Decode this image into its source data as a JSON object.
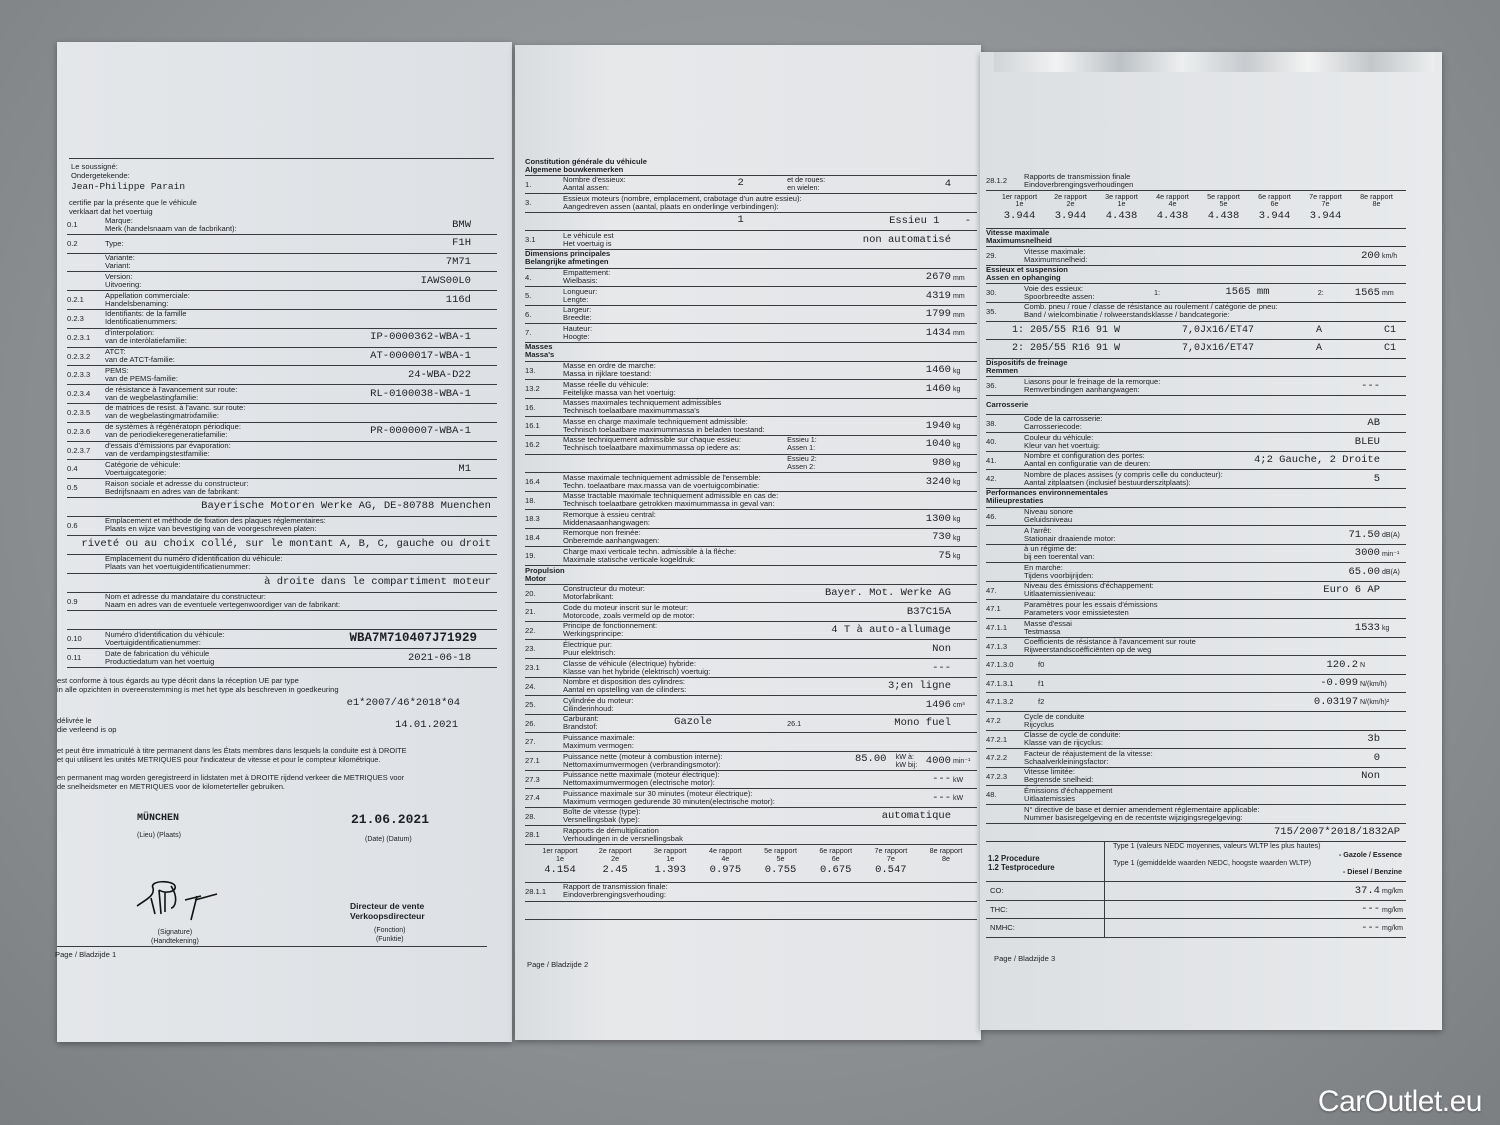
{
  "page1": {
    "intro": {
      "signatory_fr": "Le soussigné:",
      "signatory_nl": "Ondergetekende:",
      "name": "Jean-Philippe Parain",
      "certifies_fr": "certifie par la présente que le véhicule",
      "certifies_nl": "verklaart dat het voertuig"
    },
    "rows": [
      {
        "code": "0.1",
        "fr": "Marque:",
        "nl": "Merk (handelsnaam van de facbrikant):",
        "value": "BMW"
      },
      {
        "code": "0.2",
        "fr": "Type:",
        "value": "F1H",
        "kind": "single"
      },
      {
        "fr": "Variante:",
        "nl": "Variant:",
        "value": "7M71"
      },
      {
        "fr": "Version:",
        "nl": "Uitvoering:",
        "value": "IAWS00L0"
      },
      {
        "code": "0.2.1",
        "fr": "Appellation commerciale:",
        "nl": "Handelsbenaming:",
        "value": "116d"
      },
      {
        "code": "0.2.3",
        "fr": "Identifiants: de la famille",
        "nl": "Identificatienummers:"
      },
      {
        "code": "0.2.3.1",
        "fr": "d'interpolation:",
        "nl": "van de interòlatiefamilie:",
        "value": "IP-0000362-WBA-1"
      },
      {
        "code": "0.2.3.2",
        "fr": "ATCT:",
        "nl": "van de ATCT-familie:",
        "value": "AT-0000017-WBA-1"
      },
      {
        "code": "0.2.3.3",
        "fr": "PEMS:",
        "nl": "van de PEMS-familie:",
        "value": "24-WBA-D22"
      },
      {
        "code": "0.2.3.4",
        "fr": "de résistance à l'avancement sur route:",
        "nl": "van de wegbelastingfamilie:",
        "value": "RL-0100038-WBA-1"
      },
      {
        "code": "0.2.3.5",
        "fr": "de matrices de resist. à l'avanc. sur route:",
        "nl": "van de wegbelastingmatrixfamilie:"
      },
      {
        "code": "0.2.3.6",
        "fr": "de systèmes à régénératopn périodique:",
        "nl": "van de periodiekeregeneratiefamilie:",
        "value": "PR-0000007-WBA-1"
      },
      {
        "code": "0.2.3.7",
        "fr": "d'essais d'émissions par évaporation:",
        "nl": "van de verdampingstestfamilie:"
      },
      {
        "code": "0.4",
        "fr": "Catégorie de véhicule:",
        "nl": "Voertuigcategorie:",
        "value": "M1"
      },
      {
        "code": "0.5",
        "fr": "Raison sociale et adresse du constructeur:",
        "nl": "Bedrijfsnaam en adres van de fabrikant:"
      },
      {
        "kind": "vline",
        "value": "Bayerische Motoren Werke AG, DE-80788 Muenchen"
      },
      {
        "code": "0.6",
        "fr": "Emplacement et méthode de fixation des plaques réglementaires:",
        "nl": "Plaats en wijze van bevestiging van de voorgeschreven platen:"
      },
      {
        "kind": "vline",
        "value": "riveté ou au choix collé, sur le montant A, B, C, gauche ou droit"
      },
      {
        "fr": "Emplacement du numéro d'identification du véhicule:",
        "nl": "Plaats van het voertuigidentificatienummer:"
      },
      {
        "kind": "vline",
        "value": "à droite dans le compartiment moteur"
      },
      {
        "code": "0.9",
        "fr": "Nom et adresse du mandataire du constructeur:",
        "nl": "Naam en adres van de eventuele vertegenwoordiger van de fabrikant:"
      },
      {
        "kind": "vline"
      },
      {
        "code": "0.10",
        "fr": "Numéro d'identification du véhicule:",
        "nl": "Voertuigidentificatienummer:",
        "value": "WBA7M710407J71929",
        "kind": "vin"
      },
      {
        "code": "0.11",
        "fr": "Date de fabrication du véhicule",
        "nl": "Productiedatum van het voertuig",
        "value": "2021-06-18"
      }
    ],
    "conformity_fr": "est conforme à tous égards au type décrit dans la réception UE par type",
    "conformity_nl": "in alle opzichten in overeenstemming is met het type als beschreven in goedkeuring",
    "approval_number": "e1*2007/46*2018*04",
    "issued_fr": "délivrée le",
    "issued_nl": "die verleend is op",
    "issued_date": "14.01.2021",
    "registration_fr": "et peut être immatriculé à titre permanent dans les États membres dans lesquels la conduite est à DROITE\net qui utilisent les unités METRIQUES pour l'indicateur de vitesse et  pour le compteur kilométrique.",
    "registration_nl": "en permanent mag worden geregistreerd in lidstaten met à DROITE rijdend verkeer die METRIQUES voor\nde snelheidsmeter en METRIQUES voor de kilometerteller gebruiken.",
    "place": "MÜNCHEN",
    "place_label": "(Lieu) (Plaats)",
    "date": "21.06.2021",
    "date_label": "(Date) (Datum)",
    "signature_label": "(Signature)\n(Handtekening)",
    "function": "Directeur de vente\nVerkoopsdirecteur",
    "function_label": "(Fonction)\n(Funktie)",
    "footer": "Page / Bladzijde 1"
  },
  "page2": {
    "rows": [
      {
        "kind": "section",
        "fr": "Constitution générale du véhicule",
        "nl": "Algemene bouwkenmerken"
      },
      {
        "code": "1.",
        "fr": "Nombre d'essieux:",
        "nl": "Aantal assen:",
        "midval": "2",
        "mid": "et de roues:\nen wielen:",
        "value": "4"
      },
      {
        "code": "3.",
        "fr": "Essieux moteurs (nombre, emplacement, crabotage d'un autre essieu):",
        "nl": "Aangedreven assen (aantal, plaats en onderlinge verbindingen):"
      },
      {
        "kind": "vline",
        "midval": "1",
        "value": "Essieu 1    -"
      },
      {
        "code": "3.1",
        "fr": "Le véhicule est",
        "nl": "Het voertuig is",
        "value": "non automatisé"
      },
      {
        "kind": "section",
        "fr": "Dimensions principales",
        "nl": "Belangrijke afmetingen"
      },
      {
        "code": "4.",
        "fr": "Empattement:",
        "nl": "Wielbasis:",
        "value": "2670",
        "unit": "mm"
      },
      {
        "code": "5.",
        "fr": "Longueur:",
        "nl": "Lengte:",
        "value": "4319",
        "unit": "mm"
      },
      {
        "code": "6.",
        "fr": "Largeur:",
        "nl": "Breedte:",
        "value": "1799",
        "unit": "mm"
      },
      {
        "code": "7.",
        "fr": "Hauteur:",
        "nl": "Hoogte:",
        "value": "1434",
        "unit": "mm"
      },
      {
        "kind": "section",
        "fr": "Masses",
        "nl": "Massa's"
      },
      {
        "code": "13.",
        "fr": "Masse en ordre de marche:",
        "nl": "Massa in rijklare toestand:",
        "value": "1460",
        "unit": "kg"
      },
      {
        "code": "13.2",
        "fr": "Masse réelle du véhicule:",
        "nl": "Feitelijke massa van het voertuig:",
        "value": "1460",
        "unit": "kg"
      },
      {
        "code": "16.",
        "fr": "Masses maximales techniquement admissibles",
        "nl": "Technisch toelaatbare maximummassa's"
      },
      {
        "code": "16.1",
        "fr": "Masse en charge maximale techniquement admissible:",
        "nl": "Technisch toelaatbare maximummassa in beladen toestand:",
        "value": "1940",
        "unit": "kg"
      },
      {
        "code": "16.2",
        "fr": "Masse techniquement admissible sur chaque essieu:",
        "nl": "Technisch toelaatbare maximummassa op iedere as:",
        "mid": "Essieu 1:\nAssen 1:",
        "value": "1040",
        "unit": "kg"
      },
      {
        "mid": "Essieu 2:\nAssen 2:",
        "value": "980",
        "unit": "kg"
      },
      {
        "code": "16.4",
        "fr": "Masse maximale techniquement admissible de l'ensemble:",
        "nl": "Techn. toelaatbare max.massa van de voertuigcombinatie:",
        "value": "3240",
        "unit": "kg"
      },
      {
        "code": "18.",
        "fr": "Masse tractable maximale techniquement admissible en cas de:",
        "nl": "Technisch toelaatbare getrokken maximummassa in geval van:"
      },
      {
        "code": "18.3",
        "fr": "Remorque à essieu central:",
        "nl": "Middenasaanhangwagen:",
        "value": "1300",
        "unit": "kg"
      },
      {
        "code": "18.4",
        "fr": "Remorque non freinée:",
        "nl": "Onberemde aanhangwagen:",
        "value": "730",
        "unit": "kg"
      },
      {
        "code": "19.",
        "fr": "Charge maxi verticale techn. admissible à la flèche:",
        "nl": "Maximale statische verticale kogeldruk:",
        "value": "75",
        "unit": "kg"
      },
      {
        "kind": "section",
        "fr": "Propulsion",
        "nl": "Motor"
      },
      {
        "code": "20.",
        "fr": "Constructeur du moteur:",
        "nl": "Motorfabrikant:",
        "value": "Bayer. Mot. Werke AG"
      },
      {
        "code": "21.",
        "fr": "Code du moteur inscrit sur le moteur:",
        "nl": "Motorcode, zoals vermeld op de motor:",
        "value": "B37C15A"
      },
      {
        "code": "22.",
        "fr": "Principe de fonctionnement:",
        "nl": "Werkingsprincipe:",
        "value": "4 T à auto-allumage"
      },
      {
        "code": "23.",
        "fr": "Électrique pur:",
        "nl": "Puur elektrisch:",
        "value": "Non"
      },
      {
        "code": "23.1",
        "fr": "Classe de véhicule (électrique) hybride:",
        "nl": "Klasse van het hybride (elektrisch) voertuig:",
        "value": "---"
      },
      {
        "code": "24.",
        "fr": "Nombre et disposition des cylindres:",
        "nl": "Aantal en opstelling van de cilinders:",
        "value": "3;en ligne"
      },
      {
        "code": "25.",
        "fr": "Cylindrée du moteur:",
        "nl": "Cilinderinhoud:",
        "value": "1496",
        "unit": "cm³"
      },
      {
        "code": "26.",
        "fr": "Carburant:",
        "nl": "Brandstof:",
        "midval": "Gazole",
        "mid": "26.1",
        "value": "Mono fuel",
        "kind": "fuel"
      },
      {
        "code": "27.",
        "fr": "Puissance maximale:",
        "nl": "Maximum vermogen:"
      },
      {
        "code": "27.1",
        "fr": "Puissance nette (moteur à combustion interne):",
        "nl": "Nettomaximumvermogen (verbrandingsmotor):",
        "midval": "85.00",
        "mid": "kW à:\nkW bij:",
        "value": "4000",
        "unit": "min⁻¹",
        "kind": "power"
      },
      {
        "code": "27.3",
        "fr": "Puissance nette maximale (moteur électrique):",
        "nl": "Nettomaximumvermogen (electrische motor):",
        "value": "---",
        "unit": "kW"
      },
      {
        "code": "27.4",
        "fr": "Puissance maximale sur 30 minutes (moteur électrique):",
        "nl": "Maximum vermogen gedurende 30 minuten(electrische motor):",
        "value": "---",
        "unit": "kW"
      },
      {
        "code": "28.",
        "fr": "Boîte de vitesse (type):",
        "nl": "Versnellingsbak (type):",
        "value": "automatique"
      },
      {
        "code": "28.1",
        "fr": "Rapports de démultiplication",
        "nl": "Verhoudingen in de versnellingsbak"
      },
      {
        "kind": "gears",
        "labels": [
          "1er rapport\n1e",
          "2e rapport\n2e",
          "3e rapport\n1e",
          "4e rapport\n4e",
          "5e rapport\n5e",
          "6e rapport\n6e",
          "7e rapport\n7e",
          "8e rapport\n8e"
        ],
        "values": [
          "4.154",
          "2.45",
          "1.393",
          "0.975",
          "0.755",
          "0.675",
          "0.547",
          ""
        ]
      },
      {
        "code": "28.1.1",
        "fr": "Rapport de transmission finale:",
        "nl": "Eindoverbrengingsverhouding:"
      },
      {
        "kind": "vline"
      }
    ],
    "footer": "Page / Bladzijde 2"
  },
  "page3": {
    "rows": [
      {
        "code": "28.1.2",
        "fr": "Rapports de transmission finale",
        "nl": "Eindoverbrengingsverhoudingen"
      },
      {
        "kind": "gears",
        "labels": [
          "1er rapport\n1e",
          "2e rapport\n2e",
          "3e rapport\n1e",
          "4e rapport\n4e",
          "5e rapport\n5e",
          "6e rapport\n6e",
          "7e rapport\n7e",
          "8e rapport\n8e"
        ],
        "values": [
          "3.944",
          "3.944",
          "4.438",
          "4.438",
          "4.438",
          "3.944",
          "3.944",
          ""
        ]
      },
      {
        "kind": "section",
        "fr": "Vitesse maximale",
        "nl": "Maximumsnelheid"
      },
      {
        "code": "29.",
        "fr": "Vitesse maximale:",
        "nl": "Maximumsnelheid:",
        "value": "200",
        "unit": "km/h"
      },
      {
        "kind": "section",
        "fr": "Essieux et suspension",
        "nl": "Assen en ophanging"
      },
      {
        "code": "30.",
        "fr": "Voie des essieux:",
        "nl": "Spoorbreedte assen:",
        "mid": "1:",
        "midval": "1565 mm",
        "mid2": "2:",
        "value": "1565",
        "unit": "mm",
        "kind": "track"
      },
      {
        "code": "35.",
        "fr": "Comb. pneu / roue / classe de résistance au roulement / catégorie de pneu:",
        "nl": "Band / wielcombinatie / rolweerstandsklasse / bandcategorie:"
      },
      {
        "kind": "cells",
        "cells": [
          "1: 205/55 R16 91 W",
          "7,0Jx16/ET47",
          "A",
          "C1"
        ]
      },
      {
        "kind": "cells",
        "cells": [
          "2: 205/55 R16 91 W",
          "7,0Jx16/ET47",
          "A",
          "C1"
        ]
      },
      {
        "kind": "section",
        "fr": "Dispositifs de freinage",
        "nl": "Remmen"
      },
      {
        "code": "36.",
        "fr": "Liasons pour le freinage de la remorque:",
        "nl": "Remverbindingen aanhangwagen:",
        "value": "---"
      },
      {
        "kind": "section single",
        "fr": "Carrosserie"
      },
      {
        "code": "38.",
        "fr": "Code de la carrosserie:",
        "nl": "Carrosseriecode:",
        "value": "AB"
      },
      {
        "code": "40.",
        "fr": "Couleur du véhicule:",
        "nl": "Kleur van het voertuig:",
        "value": "BLEU"
      },
      {
        "code": "41.",
        "fr": "Nombre et configuration des portes:",
        "nl": "Aantal en configuratie van de deuren:",
        "value": "4;2 Gauche, 2 Droite"
      },
      {
        "code": "42.",
        "fr": "Nombre de places assises (y compris celle du conducteur):",
        "nl": "Aantal zitplaatsen (inclusief bestuurderszitplaats):",
        "value": "5"
      },
      {
        "kind": "section",
        "fr": "Performances environnementales",
        "nl": "Milieuprestaties"
      },
      {
        "code": "46.",
        "fr": "Niveau sonore",
        "nl": "Geluidsniveau"
      },
      {
        "fr": "A l'arrêt:",
        "nl": "Stationair draaiende motor:",
        "value": "71.50",
        "unit": "dB(A)"
      },
      {
        "fr": "   à un régime de:",
        "nl": "   bij een toerental van:",
        "value": "3000",
        "unit": "min⁻¹"
      },
      {
        "fr": "En marche:",
        "nl": "Tijdens voorbijrijden:",
        "value": "65.00",
        "unit": "dB(A)"
      },
      {
        "code": "47.",
        "fr": "Niveau des émissions d'échappement:",
        "nl": "Uitlaatemissieniveau:",
        "value": "Euro 6 AP"
      },
      {
        "code": "47.1",
        "fr": "Paramètres pour les essais d'émissions",
        "nl": "Parameters voor emissietesten"
      },
      {
        "code": "47.1.1",
        "fr": "Masse d'essai",
        "nl": "Testmassa",
        "value": "1533",
        "unit": "kg"
      },
      {
        "code": "47.1.3",
        "fr": "Coefficients de résistance à l'avancement sur route",
        "nl": "Rijweerstandscoëfficiënten op de weg"
      },
      {
        "code": "47.1.3.0",
        "fr": "f0",
        "value": "120.2",
        "unit": "N",
        "kind": "coef"
      },
      {
        "code": "47.1.3.1",
        "fr": "f1",
        "value": "-0.099",
        "unit": "N/(km/h)",
        "kind": "coef"
      },
      {
        "code": "47.1.3.2",
        "fr": "f2",
        "value": "0.03197",
        "unit": "N/(km/h)²",
        "kind": "coef"
      },
      {
        "code": "47.2",
        "fr": "Cycle de conduite",
        "nl": "Rijcyclus"
      },
      {
        "code": "47.2.1",
        "fr": "Classe de cycle de conduite:",
        "nl": "Klasse van de rijcyclus:",
        "value": "3b"
      },
      {
        "code": "47.2.2",
        "fr": "Facteur de réajustement de la vitesse:",
        "nl": "Schaalverkleiningsfactor:",
        "value": "0"
      },
      {
        "code": "47.2.3",
        "fr": "Vitesse limitée:",
        "nl": "Begrensde snelheid:",
        "value": "Non"
      },
      {
        "code": "48.",
        "fr": "Émissions d'échappement",
        "nl": "Uitlaatemissies"
      },
      {
        "fr": "N° directive de base et dernier amendement réglementaire applicable:",
        "nl": "Nummer basisregelgeving en de recentste wijzigingsregelgeving:"
      },
      {
        "kind": "vline",
        "value": "715/2007*2018/1832AP"
      },
      {
        "kind": "proc",
        "left": "1.2 Procedure\n1.2 Testprocedure",
        "r1": "Type 1 (valeurs NEDC moyennes, valeurs WLTP les plus hautes)",
        "r1b": "- Gazole / Essence",
        "r2": "Type 1 (gemiddelde waarden NEDC, hoogste waarden WLTP)",
        "r2b": "- Diesel / Benzine"
      },
      {
        "kind": "emis",
        "code": "CO:",
        "value": "37.4",
        "unit": "mg/km"
      },
      {
        "kind": "emis",
        "code": "THC:",
        "value": "---",
        "unit": "mg/km"
      },
      {
        "kind": "emis",
        "code": "NMHC:",
        "value": "---",
        "unit": "mg/km"
      }
    ],
    "footer": "Page / Bladzijde 3"
  },
  "watermark": "CarOutlet.eu"
}
